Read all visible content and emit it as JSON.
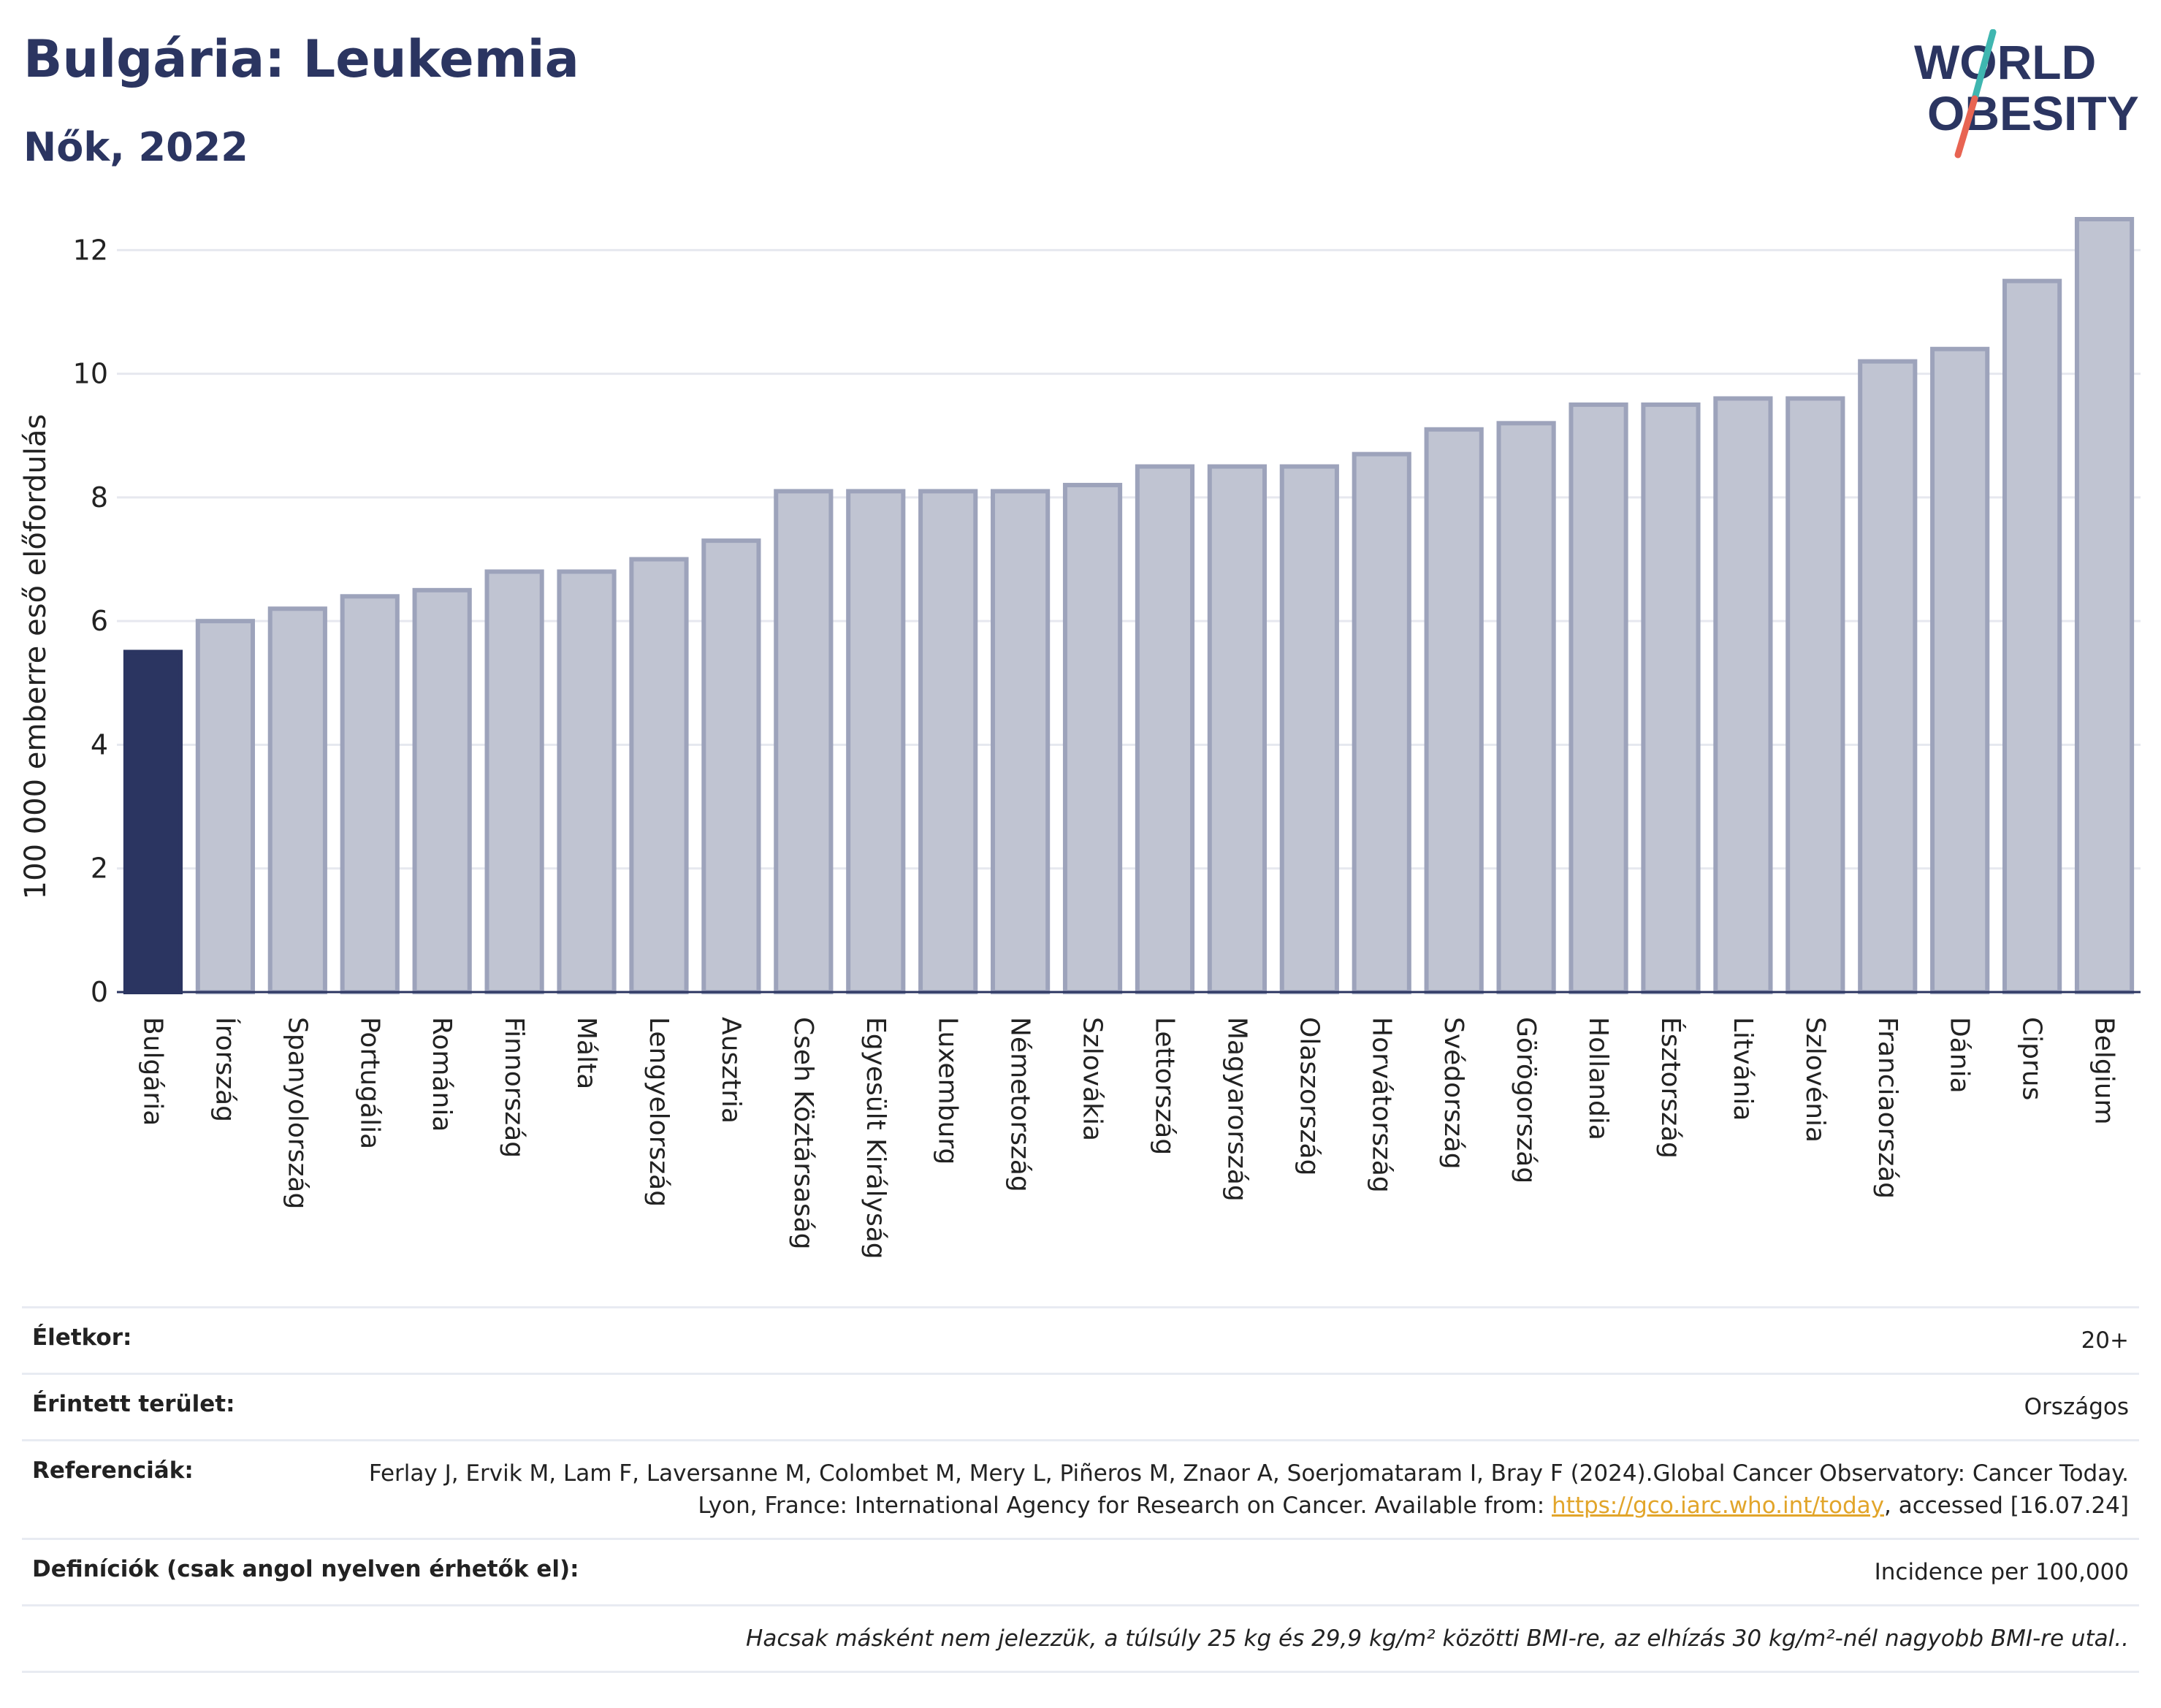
{
  "header": {
    "title": "Bulgária: Leukemia",
    "subtitle": "Nők, 2022"
  },
  "logo": {
    "line1": "WORLD",
    "line2": "OBESITY"
  },
  "chart_data": {
    "type": "bar",
    "title": "Bulgária: Leukemia",
    "subtitle": "Nők, 2022",
    "ylabel": "100 000 emberre eső előfordulás",
    "xlabel": "",
    "ylim": [
      0,
      12.5
    ],
    "yticks": [
      0,
      2,
      4,
      6,
      8,
      10,
      12
    ],
    "grid": true,
    "highlight": "Bulgária",
    "colors": {
      "highlight": "#2b3561",
      "bar": "#c0c4d2",
      "bar_border": "#9da3bb"
    },
    "categories": [
      "Bulgária",
      "Írország",
      "Spanyolország",
      "Portugália",
      "Románia",
      "Finnország",
      "Málta",
      "Lengyelország",
      "Ausztria",
      "Cseh Köztársaság",
      "Egyesült Királyság",
      "Luxemburg",
      "Németország",
      "Szlovákia",
      "Lettország",
      "Magyarország",
      "Olaszország",
      "Horvátország",
      "Svédország",
      "Görögország",
      "Hollandia",
      "Észtország",
      "Litvánia",
      "Szlovénia",
      "Franciaország",
      "Dánia",
      "Ciprus",
      "Belgium"
    ],
    "values": [
      5.5,
      6.0,
      6.2,
      6.4,
      6.5,
      6.8,
      6.8,
      7.0,
      7.3,
      8.1,
      8.1,
      8.1,
      8.1,
      8.2,
      8.5,
      8.5,
      8.5,
      8.7,
      9.1,
      9.2,
      9.5,
      9.5,
      9.6,
      9.6,
      10.2,
      10.4,
      11.5,
      12.5
    ]
  },
  "info": {
    "age_label": "Életkor:",
    "age_value": "20+",
    "area_label": "Érintett terület:",
    "area_value": "Országos",
    "ref_label": "Referenciák:",
    "ref_text_1": "Ferlay J, Ervik M, Lam F, Laversanne M, Colombet M, Mery L, Piñeros M, Znaor A, Soerjomataram I, Bray F (2024).Global Cancer Observatory: Cancer Today. Lyon, France: International Agency for Research on Cancer. Available from:",
    "ref_link": "https://gco.iarc.who.int/today",
    "ref_text_2": ", accessed [16.07.24]",
    "def_label": "Definíciók (csak angol nyelven érhetők el):",
    "def_value": "Incidence per 100,000",
    "note": "Hacsak másként nem jelezzük, a túlsúly 25 kg és 29,9 kg/m² közötti BMI-re, az elhízás 30 kg/m²-nél nagyobb BMI-re utal.."
  }
}
